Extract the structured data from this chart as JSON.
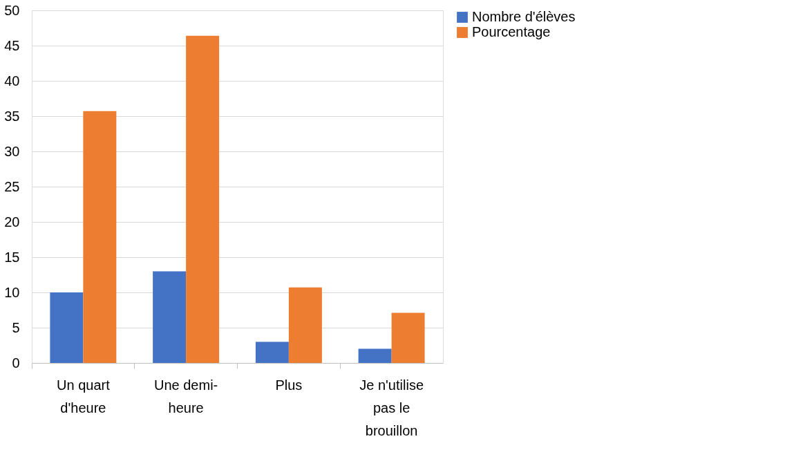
{
  "chart_data": {
    "type": "bar",
    "categories": [
      "Un quart d'heure",
      "Une demi-heure",
      "Plus",
      "Je n'utilise pas le brouillon"
    ],
    "series": [
      {
        "name": "Nombre d'élèves",
        "color": "#4472c4",
        "values": [
          10,
          13,
          3,
          2
        ]
      },
      {
        "name": "Pourcentage",
        "color": "#ed7d31",
        "values": [
          35.7,
          46.4,
          10.7,
          7.1
        ]
      }
    ],
    "ylim": [
      0,
      50
    ],
    "yticks": [
      0,
      5,
      10,
      15,
      20,
      25,
      30,
      35,
      40,
      45,
      50
    ],
    "grid": "y",
    "legend": "right"
  }
}
